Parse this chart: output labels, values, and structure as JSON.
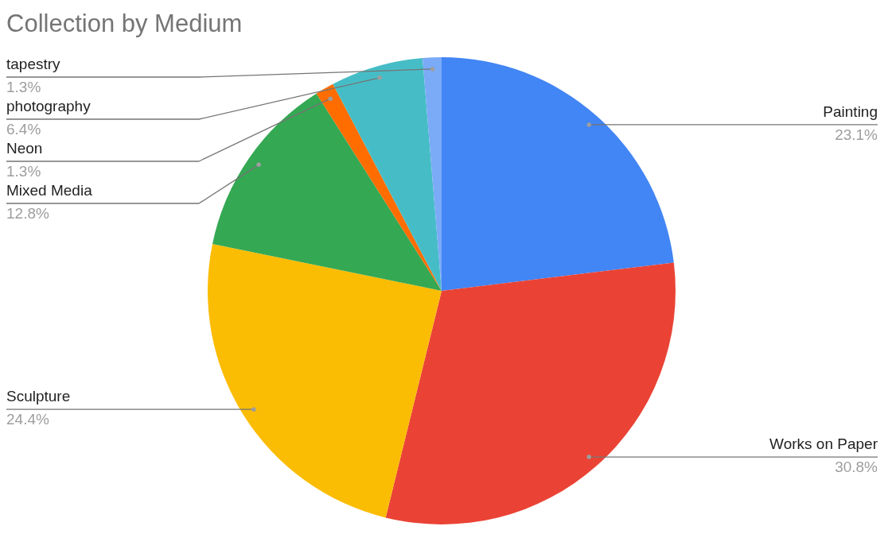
{
  "chart_data": {
    "type": "pie",
    "title": "Collection by Medium",
    "categories": [
      "Painting",
      "Works on Paper",
      "Sculpture",
      "Mixed Media",
      "Neon",
      "photography",
      "tapestry"
    ],
    "values": [
      23.1,
      30.8,
      24.4,
      12.8,
      1.3,
      6.4,
      1.3
    ],
    "value_labels": [
      "23.1%",
      "30.8%",
      "24.4%",
      "12.8%",
      "1.3%",
      "6.4%",
      "1.3%"
    ],
    "colors": [
      "#4285f4",
      "#ea4335",
      "#fbbc04",
      "#34a853",
      "#ff6d01",
      "#46bdc6",
      "#7baaf7"
    ]
  }
}
